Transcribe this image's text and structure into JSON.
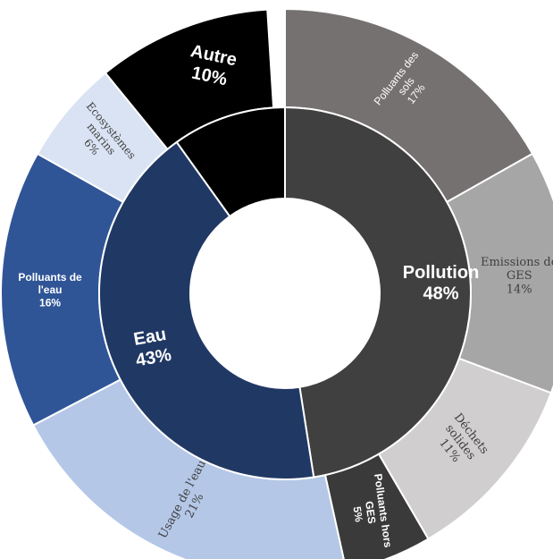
{
  "chart_data": {
    "type": "sunburst",
    "title": "",
    "inner_ring": [
      {
        "name": "Pollution",
        "value": 48,
        "label_value": "48%",
        "color": "#404040"
      },
      {
        "name": "Eau",
        "value": 43,
        "label_value": "43%",
        "color": "#203864"
      },
      {
        "name": "Autre",
        "value": 10,
        "label_value": "10%",
        "color": "#000000"
      }
    ],
    "outer_ring": [
      {
        "parent": "Pollution",
        "name": "Polluants des sols",
        "value": 17,
        "label_value": "17%",
        "color": "#767171"
      },
      {
        "parent": "Pollution",
        "name": "Emissions de GES",
        "value": 14,
        "label_value": "14%",
        "color": "#a6a6a6"
      },
      {
        "parent": "Pollution",
        "name": "Déchets solides",
        "value": 11,
        "label_value": "11%",
        "color": "#d0cece"
      },
      {
        "parent": "Pollution",
        "name": "Polluants hors GES",
        "value": 5,
        "label_value": "5%",
        "color": "#3a3a3a"
      },
      {
        "parent": "Eau",
        "name": "Usage de l'eau",
        "value": 21,
        "label_value": "21%",
        "color": "#b4c7e7"
      },
      {
        "parent": "Eau",
        "name": "Polluants de l'eau",
        "value": 16,
        "label_value": "16%",
        "color": "#2f5597"
      },
      {
        "parent": "Eau",
        "name": "Ecosystèmes marins",
        "value": 6,
        "label_value": "6%",
        "color": "#dae3f3"
      },
      {
        "parent": "Autre",
        "name": "Autre",
        "value": 10,
        "label_value": "",
        "color": "#000000"
      }
    ]
  }
}
